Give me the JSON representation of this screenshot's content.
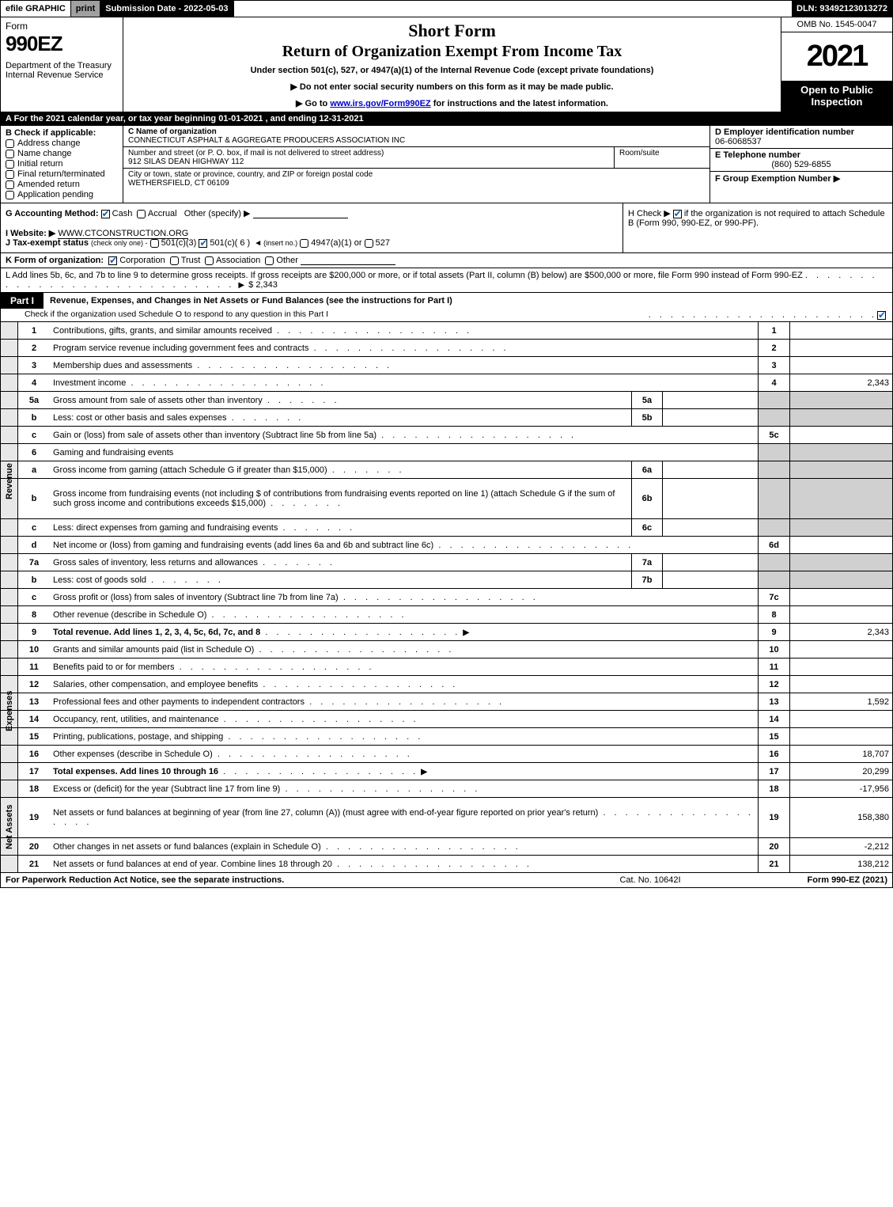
{
  "topbar": {
    "efile": "efile GRAPHIC",
    "print": "print",
    "submission": "Submission Date - 2022-05-03",
    "dln": "DLN: 93492123013272"
  },
  "header": {
    "form_word": "Form",
    "form_num": "990EZ",
    "dept": "Department of the Treasury\nInternal Revenue Service",
    "title1": "Short Form",
    "title2": "Return of Organization Exempt From Income Tax",
    "subtitle": "Under section 501(c), 527, or 4947(a)(1) of the Internal Revenue Code (except private foundations)",
    "directive1": "▶ Do not enter social security numbers on this form as it may be made public.",
    "directive2_pre": "▶ Go to ",
    "directive2_link": "www.irs.gov/Form990EZ",
    "directive2_post": " for instructions and the latest information.",
    "omb": "OMB No. 1545-0047",
    "year": "2021",
    "inspect": "Open to Public Inspection"
  },
  "rowA": "A  For the 2021 calendar year, or tax year beginning 01-01-2021 , and ending 12-31-2021",
  "sectionB": {
    "title": "B  Check if applicable:",
    "items": [
      "Address change",
      "Name change",
      "Initial return",
      "Final return/terminated",
      "Amended return",
      "Application pending"
    ]
  },
  "sectionC": {
    "name_lbl": "C Name of organization",
    "name_val": "CONNECTICUT ASPHALT & AGGREGATE PRODUCERS ASSOCIATION INC",
    "street_lbl": "Number and street (or P. O. box, if mail is not delivered to street address)",
    "street_val": "912 SILAS DEAN HIGHWAY 112",
    "room_lbl": "Room/suite",
    "city_lbl": "City or town, state or province, country, and ZIP or foreign postal code",
    "city_val": "WETHERSFIELD, CT  06109"
  },
  "sectionD": {
    "lbl": "D Employer identification number",
    "val": "06-6068537"
  },
  "sectionE": {
    "lbl": "E Telephone number",
    "val": "(860) 529-6855"
  },
  "sectionF": {
    "lbl": "F Group Exemption Number  ▶",
    "val": ""
  },
  "rowG": {
    "label": "G Accounting Method:",
    "cash": "Cash",
    "accrual": "Accrual",
    "other": "Other (specify) ▶"
  },
  "rowH": {
    "text_pre": "H  Check ▶ ",
    "text_post": " if the organization is not required to attach Schedule B (Form 990, 990-EZ, or 990-PF)."
  },
  "rowI": {
    "label": "I Website: ▶",
    "val": "WWW.CTCONSTRUCTION.ORG"
  },
  "rowJ": {
    "label": "J Tax-exempt status",
    "detail": "(check only one) -",
    "opt1": "501(c)(3)",
    "opt2": "501(c)( 6 )",
    "opt2_post": "(insert no.)",
    "opt3": "4947(a)(1) or",
    "opt4": "527"
  },
  "rowK": {
    "label": "K Form of organization:",
    "opts": [
      "Corporation",
      "Trust",
      "Association",
      "Other"
    ]
  },
  "rowL": {
    "text": "L Add lines 5b, 6c, and 7b to line 9 to determine gross receipts. If gross receipts are $200,000 or more, or if total assets (Part II, column (B) below) are $500,000 or more, file Form 990 instead of Form 990-EZ",
    "amount": "$ 2,343"
  },
  "part1": {
    "tab": "Part I",
    "title": "Revenue, Expenses, and Changes in Net Assets or Fund Balances (see the instructions for Part I)",
    "sub": "Check if the organization used Schedule O to respond to any question in this Part I"
  },
  "sections": {
    "revenue": "Revenue",
    "expenses": "Expenses",
    "netassets": "Net Assets"
  },
  "lines": [
    {
      "num": "1",
      "desc": "Contributions, gifts, grants, and similar amounts received",
      "box": "1",
      "amt": ""
    },
    {
      "num": "2",
      "desc": "Program service revenue including government fees and contracts",
      "box": "2",
      "amt": ""
    },
    {
      "num": "3",
      "desc": "Membership dues and assessments",
      "box": "3",
      "amt": ""
    },
    {
      "num": "4",
      "desc": "Investment income",
      "box": "4",
      "amt": "2,343"
    },
    {
      "num": "5a",
      "desc": "Gross amount from sale of assets other than inventory",
      "mini": "5a",
      "shade": true
    },
    {
      "num": "b",
      "desc": "Less: cost or other basis and sales expenses",
      "mini": "5b",
      "shade": true
    },
    {
      "num": "c",
      "desc": "Gain or (loss) from sale of assets other than inventory (Subtract line 5b from line 5a)",
      "box": "5c",
      "amt": ""
    },
    {
      "num": "6",
      "desc": "Gaming and fundraising events",
      "shade": true,
      "nobox": true
    },
    {
      "num": "a",
      "desc": "Gross income from gaming (attach Schedule G if greater than $15,000)",
      "mini": "6a",
      "shade": true
    },
    {
      "num": "b",
      "desc": "Gross income from fundraising events (not including $                       of contributions from fundraising events reported on line 1) (attach Schedule G if the sum of such gross income and contributions exceeds $15,000)",
      "mini": "6b",
      "shade": true,
      "tall": true
    },
    {
      "num": "c",
      "desc": "Less: direct expenses from gaming and fundraising events",
      "mini": "6c",
      "shade": true
    },
    {
      "num": "d",
      "desc": "Net income or (loss) from gaming and fundraising events (add lines 6a and 6b and subtract line 6c)",
      "box": "6d",
      "amt": ""
    },
    {
      "num": "7a",
      "desc": "Gross sales of inventory, less returns and allowances",
      "mini": "7a",
      "shade": true
    },
    {
      "num": "b",
      "desc": "Less: cost of goods sold",
      "mini": "7b",
      "shade": true
    },
    {
      "num": "c",
      "desc": "Gross profit or (loss) from sales of inventory (Subtract line 7b from line 7a)",
      "box": "7c",
      "amt": ""
    },
    {
      "num": "8",
      "desc": "Other revenue (describe in Schedule O)",
      "box": "8",
      "amt": ""
    },
    {
      "num": "9",
      "desc": "Total revenue. Add lines 1, 2, 3, 4, 5c, 6d, 7c, and 8",
      "box": "9",
      "amt": "2,343",
      "bold": true,
      "arrow": true
    }
  ],
  "expense_lines": [
    {
      "num": "10",
      "desc": "Grants and similar amounts paid (list in Schedule O)",
      "box": "10",
      "amt": ""
    },
    {
      "num": "11",
      "desc": "Benefits paid to or for members",
      "box": "11",
      "amt": ""
    },
    {
      "num": "12",
      "desc": "Salaries, other compensation, and employee benefits",
      "box": "12",
      "amt": ""
    },
    {
      "num": "13",
      "desc": "Professional fees and other payments to independent contractors",
      "box": "13",
      "amt": "1,592"
    },
    {
      "num": "14",
      "desc": "Occupancy, rent, utilities, and maintenance",
      "box": "14",
      "amt": ""
    },
    {
      "num": "15",
      "desc": "Printing, publications, postage, and shipping",
      "box": "15",
      "amt": ""
    },
    {
      "num": "16",
      "desc": "Other expenses (describe in Schedule O)",
      "box": "16",
      "amt": "18,707"
    },
    {
      "num": "17",
      "desc": "Total expenses. Add lines 10 through 16",
      "box": "17",
      "amt": "20,299",
      "bold": true,
      "arrow": true
    }
  ],
  "netasset_lines": [
    {
      "num": "18",
      "desc": "Excess or (deficit) for the year (Subtract line 17 from line 9)",
      "box": "18",
      "amt": "-17,956"
    },
    {
      "num": "19",
      "desc": "Net assets or fund balances at beginning of year (from line 27, column (A)) (must agree with end-of-year figure reported on prior year's return)",
      "box": "19",
      "amt": "158,380",
      "tall": true
    },
    {
      "num": "20",
      "desc": "Other changes in net assets or fund balances (explain in Schedule O)",
      "box": "20",
      "amt": "-2,212"
    },
    {
      "num": "21",
      "desc": "Net assets or fund balances at end of year. Combine lines 18 through 20",
      "box": "21",
      "amt": "138,212"
    }
  ],
  "footer": {
    "left": "For Paperwork Reduction Act Notice, see the separate instructions.",
    "center": "Cat. No. 10642I",
    "right": "Form 990-EZ (2021)"
  }
}
